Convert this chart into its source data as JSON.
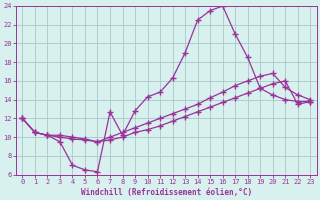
{
  "xlabel": "Windchill (Refroidissement éolien,°C)",
  "bg_color": "#d8f0ee",
  "line_color": "#993399",
  "grid_color": "#aac8c8",
  "xlim": [
    -0.5,
    23.5
  ],
  "ylim": [
    6,
    24
  ],
  "xticks": [
    0,
    1,
    2,
    3,
    4,
    5,
    6,
    7,
    8,
    9,
    10,
    11,
    12,
    13,
    14,
    15,
    16,
    17,
    18,
    19,
    20,
    21,
    22,
    23
  ],
  "yticks": [
    6,
    8,
    10,
    12,
    14,
    16,
    18,
    20,
    22,
    24
  ],
  "curve1_x": [
    0,
    1,
    2,
    3,
    4,
    5,
    6,
    7,
    8,
    9,
    10,
    11,
    12,
    13,
    14,
    15,
    16,
    17,
    18,
    19,
    20,
    21,
    22,
    23
  ],
  "curve1_y": [
    12.0,
    10.5,
    10.2,
    9.5,
    7.0,
    6.5,
    6.3,
    12.7,
    10.2,
    12.8,
    14.3,
    14.8,
    16.3,
    19.0,
    22.5,
    23.5,
    24.0,
    21.0,
    18.5,
    15.2,
    14.5,
    14.0,
    13.8,
    13.8
  ],
  "curve2_x": [
    0,
    1,
    2,
    3,
    4,
    5,
    6,
    7,
    8,
    9,
    10,
    11,
    12,
    13,
    14,
    15,
    16,
    17,
    18,
    19,
    20,
    21,
    22,
    23
  ],
  "curve2_y": [
    12.0,
    10.5,
    10.2,
    10.2,
    10.0,
    9.8,
    9.5,
    10.0,
    10.5,
    11.0,
    11.5,
    12.0,
    12.5,
    13.0,
    13.5,
    14.2,
    14.8,
    15.5,
    16.0,
    16.5,
    16.8,
    15.3,
    14.5,
    14.0
  ],
  "curve3_x": [
    0,
    1,
    2,
    3,
    4,
    5,
    6,
    7,
    8,
    9,
    10,
    11,
    12,
    13,
    14,
    15,
    16,
    17,
    18,
    19,
    20,
    21,
    22,
    23
  ],
  "curve3_y": [
    12.0,
    10.5,
    10.2,
    10.0,
    9.8,
    9.7,
    9.5,
    9.7,
    10.0,
    10.5,
    10.8,
    11.2,
    11.7,
    12.2,
    12.7,
    13.2,
    13.7,
    14.2,
    14.7,
    15.2,
    15.7,
    16.0,
    13.5,
    13.8
  ]
}
